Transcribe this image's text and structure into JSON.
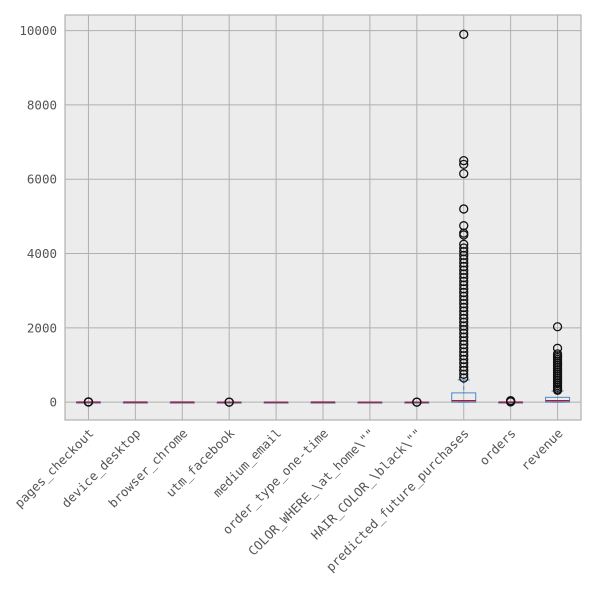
{
  "chart_data": {
    "type": "box",
    "title": "",
    "xlabel": "",
    "ylabel": "",
    "grid": true,
    "ylim": [
      -480,
      10420
    ],
    "yticks": [
      0,
      2000,
      4000,
      6000,
      8000,
      10000
    ],
    "categories": [
      "pages_checkout",
      "device_desktop",
      "browser_chrome",
      "utm_facebook",
      "medium_email",
      "order_type_one-time",
      "COLOR_WHERE_\\at_home\\\"\"",
      "HAIR_COLOR_\\black\\\"\"",
      "predicted_future_purchases",
      "orders",
      "revenue"
    ],
    "boxes": [
      {
        "q1": 0,
        "median": 1,
        "q3": 2,
        "whisker_low": 0,
        "whisker_high": 3,
        "outliers": [
          4,
          6,
          8
        ]
      },
      {
        "q1": 0,
        "median": 1,
        "q3": 1,
        "whisker_low": 0,
        "whisker_high": 1,
        "outliers": []
      },
      {
        "q1": 0,
        "median": 1,
        "q3": 1,
        "whisker_low": 0,
        "whisker_high": 1,
        "outliers": []
      },
      {
        "q1": 0,
        "median": 0,
        "q3": 0,
        "whisker_low": 0,
        "whisker_high": 0,
        "outliers": [
          1,
          2
        ]
      },
      {
        "q1": 0,
        "median": 0,
        "q3": 1,
        "whisker_low": 0,
        "whisker_high": 1,
        "outliers": []
      },
      {
        "q1": 0,
        "median": 1,
        "q3": 1,
        "whisker_low": 0,
        "whisker_high": 1,
        "outliers": []
      },
      {
        "q1": 0,
        "median": 0,
        "q3": 1,
        "whisker_low": 0,
        "whisker_high": 1,
        "outliers": []
      },
      {
        "q1": 0,
        "median": 0,
        "q3": 0,
        "whisker_low": 0,
        "whisker_high": 0,
        "outliers": [
          1,
          2
        ]
      },
      {
        "q1": 0,
        "median": 40,
        "q3": 250,
        "whisker_low": 0,
        "whisker_high": 600,
        "outliers": [
          9900,
          6500,
          6400,
          6150,
          5200,
          4750,
          4550,
          4500,
          4250,
          4150,
          4050,
          3950,
          3850,
          3750,
          3650,
          3550,
          3450,
          3350,
          3250,
          3150,
          3050,
          2950,
          2850,
          2750,
          2650,
          2550,
          2450,
          2350,
          2250,
          2150,
          2050,
          1950,
          1850,
          1750,
          1650,
          1550,
          1450,
          1350,
          1250,
          1150,
          1050,
          950,
          850,
          750,
          650
        ]
      },
      {
        "q1": 0,
        "median": 1,
        "q3": 2,
        "whisker_low": 0,
        "whisker_high": 5,
        "outliers": [
          8,
          12,
          20,
          40
        ]
      },
      {
        "q1": 0,
        "median": 40,
        "q3": 130,
        "whisker_low": 0,
        "whisker_high": 300,
        "outliers": [
          2030,
          1450,
          1300,
          1250,
          1200,
          1150,
          1100,
          1050,
          1000,
          950,
          900,
          850,
          800,
          750,
          700,
          650,
          600,
          550,
          500,
          450,
          400,
          350,
          320
        ]
      }
    ],
    "colors": {
      "background": "#ffffff",
      "plot_bg": "#ececec",
      "grid": "#b0b0b0",
      "box": "#4c88c4",
      "median": "#a0203c",
      "outlier": "#111111",
      "tick_text": "#555555",
      "frame": "#b0b0b0"
    }
  }
}
